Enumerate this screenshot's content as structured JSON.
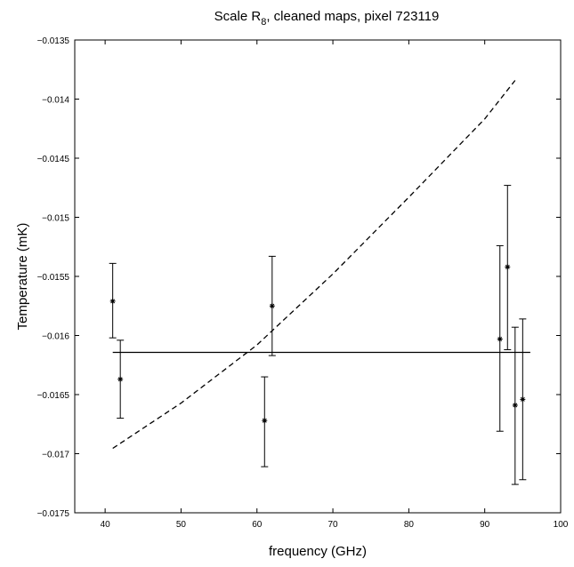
{
  "chart_data": {
    "type": "scatter",
    "title": "Scale R",
    "title_subscript": "8",
    "title_suffix": ", cleaned maps, pixel 723119",
    "xlabel": "frequency (GHz)",
    "ylabel": "Temperature (mK)",
    "xlim": [
      36,
      100
    ],
    "ylim": [
      -0.0175,
      -0.0135
    ],
    "xticks": [
      40,
      50,
      60,
      70,
      80,
      90,
      100
    ],
    "xtick_labels": [
      "40",
      "50",
      "60",
      "70",
      "80",
      "90",
      "100"
    ],
    "yticks": [
      -0.0135,
      -0.014,
      -0.0145,
      -0.015,
      -0.0155,
      -0.016,
      -0.0165,
      -0.017,
      -0.0175
    ],
    "ytick_labels": [
      "−0.0135",
      "−0.014",
      "−0.0145",
      "−0.015",
      "−0.0155",
      "−0.016",
      "−0.0165",
      "−0.017",
      "−0.0175"
    ],
    "grid": false,
    "legend": "none",
    "points": [
      {
        "x": 41,
        "y": -0.01571,
        "err_low": -0.01602,
        "err_high": -0.01539
      },
      {
        "x": 42,
        "y": -0.01637,
        "err_low": -0.0167,
        "err_high": -0.01604
      },
      {
        "x": 61,
        "y": -0.01672,
        "err_low": -0.01711,
        "err_high": -0.01635
      },
      {
        "x": 62,
        "y": -0.01575,
        "err_low": -0.01617,
        "err_high": -0.01533
      },
      {
        "x": 92,
        "y": -0.01603,
        "err_low": -0.01681,
        "err_high": -0.01524
      },
      {
        "x": 93,
        "y": -0.01542,
        "err_low": -0.01612,
        "err_high": -0.01473
      },
      {
        "x": 94,
        "y": -0.01659,
        "err_low": -0.01726,
        "err_high": -0.01593
      },
      {
        "x": 95,
        "y": -0.01654,
        "err_low": -0.01722,
        "err_high": -0.01586
      }
    ],
    "series": [
      {
        "style": "solid",
        "x": [
          41,
          96
        ],
        "y": [
          -0.016143,
          -0.016143
        ]
      },
      {
        "style": "dashed",
        "x": [
          41,
          50,
          60,
          70,
          80,
          90,
          94
        ],
        "y": [
          -0.016955,
          -0.016572,
          -0.01608,
          -0.015479,
          -0.01483,
          -0.014168,
          -0.013842
        ]
      }
    ]
  }
}
